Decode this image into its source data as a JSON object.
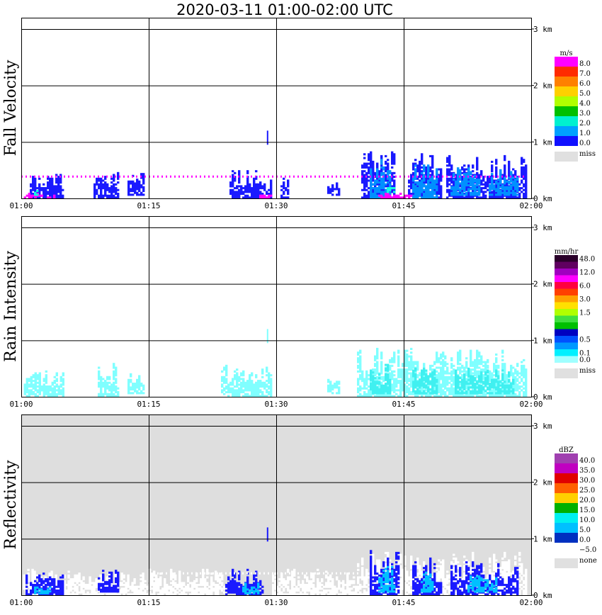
{
  "chart_data": {
    "title": "2020-03-11   01:00-02:00 UTC",
    "type": "heatmap",
    "time_ticks": [
      "01:00",
      "01:15",
      "01:30",
      "01:45",
      "02:00"
    ],
    "height_ticks": [
      "0 km",
      "1 km",
      "2 km",
      "3 km"
    ],
    "ylim_km": [
      0,
      3.2
    ],
    "grid": true,
    "panels": [
      {
        "label": "Fall Velocity",
        "unit": "m/s",
        "background": "#ffffff",
        "colorbar": [
          {
            "label": "8.0",
            "color": "#ff00ff"
          },
          {
            "label": "7.0",
            "color": "#ff2a00"
          },
          {
            "label": "6.0",
            "color": "#ff8000"
          },
          {
            "label": "5.0",
            "color": "#ffd000"
          },
          {
            "label": "4.0",
            "color": "#b0ff00"
          },
          {
            "label": "3.0",
            "color": "#00c000"
          },
          {
            "label": "2.0",
            "color": "#00f0d0"
          },
          {
            "label": "1.0",
            "color": "#00a0ff"
          },
          {
            "label": "0.0",
            "color": "#1010ff"
          }
        ],
        "miss_label": "miss",
        "miss_color": "#e0e0e0",
        "cells": [
          {
            "color": "#1a1aff",
            "regions": [
              [
                1.0,
                5.0,
                0.0,
                0.45
              ],
              [
                8.5,
                11.5,
                0.0,
                0.45
              ],
              [
                12.5,
                14.5,
                0.05,
                0.45
              ],
              [
                24.5,
                28.5,
                0.0,
                0.5
              ],
              [
                28.5,
                29.5,
                0.0,
                0.35
              ],
              [
                30.5,
                31.5,
                0.0,
                0.35
              ],
              [
                36.0,
                37.5,
                0.05,
                0.3
              ],
              [
                40.0,
                44.0,
                0.0,
                0.85
              ],
              [
                45.5,
                49.5,
                0.0,
                0.8
              ],
              [
                50.0,
                59.5,
                0.0,
                0.75
              ]
            ]
          },
          {
            "color": "#0090ff",
            "regions": [
              [
                41.0,
                43.5,
                0.0,
                0.7
              ],
              [
                46.0,
                49.0,
                0.0,
                0.6
              ],
              [
                50.5,
                54.0,
                0.05,
                0.55
              ],
              [
                55.0,
                58.5,
                0.05,
                0.55
              ]
            ]
          },
          {
            "color": "#ff00ff",
            "regions": [
              [
                0.3,
                2.5,
                0.0,
                0.08
              ],
              [
                3.0,
                4.0,
                0.0,
                0.05
              ],
              [
                28.0,
                29.5,
                0.0,
                0.06
              ],
              [
                42.0,
                46.0,
                0.0,
                0.07
              ]
            ]
          },
          {
            "color": "#10ffe0",
            "regions": [
              [
                1.5,
                2.0,
                0.05,
                0.15
              ],
              [
                43.0,
                44.0,
                0.1,
                0.25
              ]
            ]
          }
        ],
        "spikes": [
          {
            "t": 28.9,
            "h0": 0.95,
            "h1": 1.2,
            "color": "#1a1aff"
          }
        ],
        "dot_rows": [
          {
            "h": 0.38,
            "t0": 0.0,
            "t1": 59.5,
            "step": 0.5,
            "color": "#ff00ff"
          }
        ]
      },
      {
        "label": "Rain Intensity",
        "unit": "mm/hr",
        "background": "#ffffff",
        "colorbar": [
          {
            "label": "48.0",
            "color": "#2a002a"
          },
          {
            "label": "",
            "color": "#600060"
          },
          {
            "label": "12.0",
            "color": "#a000c0"
          },
          {
            "label": "",
            "color": "#ff00ff"
          },
          {
            "label": "6.0",
            "color": "#ff0040"
          },
          {
            "label": "",
            "color": "#ff4000"
          },
          {
            "label": "3.0",
            "color": "#ffa000"
          },
          {
            "label": "",
            "color": "#ffe000"
          },
          {
            "label": "1.5",
            "color": "#b0ff00"
          },
          {
            "label": "",
            "color": "#40e040"
          },
          {
            "label": "",
            "color": "#00c000"
          },
          {
            "label": "",
            "color": "#0000c0"
          },
          {
            "label": "0.5",
            "color": "#0050ff"
          },
          {
            "label": "",
            "color": "#0098ff"
          },
          {
            "label": "0.1",
            "color": "#00f0ff"
          },
          {
            "label": "0.0",
            "color": "#a0ffff"
          }
        ],
        "miss_label": "miss",
        "miss_color": "#e0e0e0",
        "cells": [
          {
            "color": "#80ffff",
            "regions": [
              [
                0.3,
                5.0,
                0.0,
                0.45
              ],
              [
                9.0,
                11.5,
                0.0,
                0.6
              ],
              [
                12.5,
                14.5,
                0.05,
                0.4
              ],
              [
                23.5,
                29.5,
                0.0,
                0.55
              ],
              [
                36.0,
                37.5,
                0.05,
                0.3
              ],
              [
                39.5,
                59.5,
                0.0,
                0.85
              ]
            ]
          },
          {
            "color": "#40f0f0",
            "regions": [
              [
                41.0,
                43.5,
                0.05,
                0.6
              ],
              [
                46.0,
                49.0,
                0.05,
                0.5
              ],
              [
                51.0,
                58.0,
                0.05,
                0.5
              ]
            ]
          }
        ],
        "spikes": [
          {
            "t": 28.9,
            "h0": 0.95,
            "h1": 1.2,
            "color": "#80ffff"
          }
        ],
        "dot_rows": []
      },
      {
        "label": "Reflectivity",
        "unit": "dBZ",
        "background": "#dedede",
        "colorbar": [
          {
            "label": "40.0",
            "color": "#a040b0"
          },
          {
            "label": "35.0",
            "color": "#c000c0"
          },
          {
            "label": "30.0",
            "color": "#e00000"
          },
          {
            "label": "25.0",
            "color": "#ff6000"
          },
          {
            "label": "20.0",
            "color": "#ffd000"
          },
          {
            "label": "15.0",
            "color": "#00b000"
          },
          {
            "label": "10.0",
            "color": "#00f0f0"
          },
          {
            "label": "5.0",
            "color": "#00c0ff"
          },
          {
            "label": "0.0",
            "color": "#0030c0"
          },
          {
            "label": "−5.0",
            "color": "#ffffff"
          }
        ],
        "miss_label": "none",
        "miss_color": "#e0e0e0",
        "cells": [
          {
            "color": "#ffffff",
            "regions": [
              [
                0.2,
                15.0,
                0.0,
                0.45
              ],
              [
                15.0,
                24.0,
                0.0,
                0.5
              ],
              [
                29.5,
                39.5,
                0.0,
                0.45
              ],
              [
                39.5,
                59.5,
                0.0,
                0.75
              ]
            ]
          },
          {
            "color": "#1a1aff",
            "regions": [
              [
                0.5,
                5.0,
                0.0,
                0.4
              ],
              [
                9.0,
                11.5,
                0.05,
                0.45
              ],
              [
                24.0,
                28.5,
                0.0,
                0.45
              ],
              [
                41.0,
                44.5,
                0.0,
                0.8
              ],
              [
                46.0,
                49.5,
                0.0,
                0.65
              ],
              [
                50.5,
                58.5,
                0.0,
                0.6
              ]
            ]
          },
          {
            "color": "#00c0ff",
            "regions": [
              [
                1.5,
                3.5,
                0.02,
                0.2
              ],
              [
                26.0,
                28.0,
                0.02,
                0.22
              ],
              [
                42.0,
                44.0,
                0.05,
                0.5
              ],
              [
                47.0,
                48.5,
                0.05,
                0.4
              ],
              [
                52.5,
                56.0,
                0.05,
                0.35
              ]
            ]
          }
        ],
        "spikes": [
          {
            "t": 28.9,
            "h0": 0.95,
            "h1": 1.2,
            "color": "#1a1aff"
          }
        ],
        "dot_rows": [
          {
            "h": 0.38,
            "t0": 15.0,
            "t1": 40.0,
            "step": 0.5,
            "color": "#ffffff"
          }
        ]
      }
    ]
  }
}
